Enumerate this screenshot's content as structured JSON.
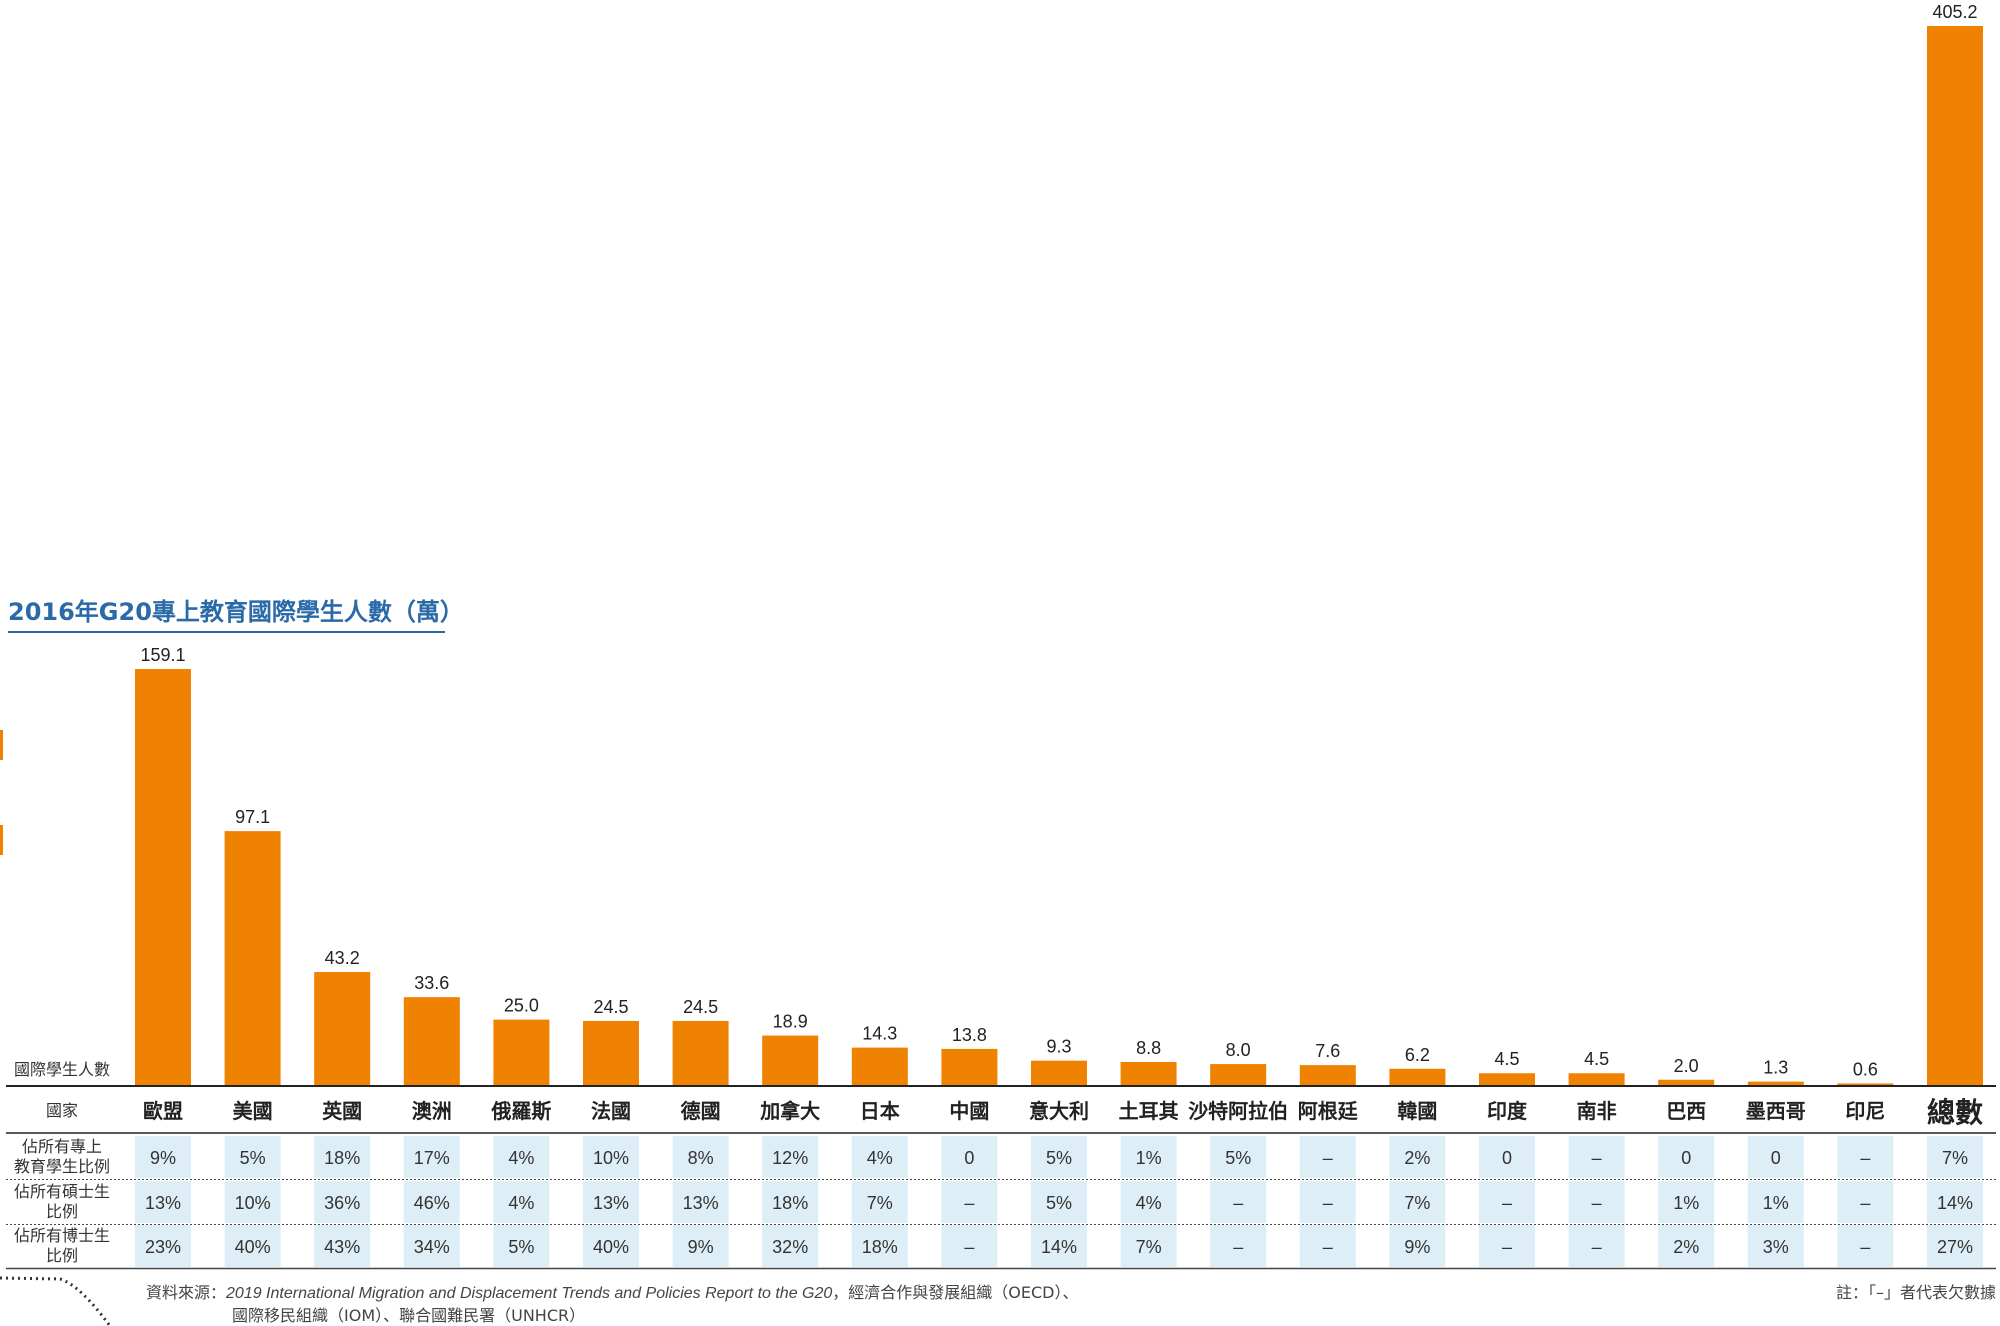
{
  "chart_data": {
    "type": "bar",
    "title": "2016年G20專上教育國際學生人數（萬）",
    "bar_row_label": "國際學生人數",
    "country_header": "國家",
    "categories": [
      "歐盟",
      "美國",
      "英國",
      "澳洲",
      "俄羅斯",
      "法國",
      "德國",
      "加拿大",
      "日本",
      "中國",
      "意大利",
      "土耳其",
      "沙特阿拉伯",
      "阿根廷",
      "韓國",
      "印度",
      "南非",
      "巴西",
      "墨西哥",
      "印尼",
      "總數"
    ],
    "values": [
      159.1,
      97.1,
      43.2,
      33.6,
      25.0,
      24.5,
      24.5,
      18.9,
      14.3,
      13.8,
      9.3,
      8.8,
      8.0,
      7.6,
      6.2,
      4.5,
      4.5,
      2.0,
      1.3,
      0.6,
      405.2
    ],
    "value_labels": [
      "159.1",
      "97.1",
      "43.2",
      "33.6",
      "25.0",
      "24.5",
      "24.5",
      "18.9",
      "14.3",
      "13.8",
      "9.3",
      "8.8",
      "8.0",
      "7.6",
      "6.2",
      "4.5",
      "4.5",
      "2.0",
      "1.3",
      "0.6",
      "405.2"
    ],
    "bar_color": "#ef8200",
    "title_color": "#2a6aa8",
    "table": {
      "rows": [
        {
          "label_lines": [
            "佔所有專上",
            "教育學生比例"
          ],
          "values": [
            "9%",
            "5%",
            "18%",
            "17%",
            "4%",
            "10%",
            "8%",
            "12%",
            "4%",
            "0",
            "5%",
            "1%",
            "5%",
            "–",
            "2%",
            "0",
            "–",
            "0",
            "0",
            "–",
            "7%"
          ]
        },
        {
          "label_lines": [
            "佔所有碩士生",
            "比例"
          ],
          "values": [
            "13%",
            "10%",
            "36%",
            "46%",
            "4%",
            "13%",
            "13%",
            "18%",
            "7%",
            "–",
            "5%",
            "4%",
            "–",
            "–",
            "7%",
            "–",
            "–",
            "1%",
            "1%",
            "–",
            "14%"
          ]
        },
        {
          "label_lines": [
            "佔所有博士生",
            "比例"
          ],
          "values": [
            "23%",
            "40%",
            "43%",
            "34%",
            "5%",
            "40%",
            "9%",
            "32%",
            "18%",
            "–",
            "14%",
            "7%",
            "–",
            "–",
            "9%",
            "–",
            "–",
            "2%",
            "3%",
            "–",
            "27%"
          ]
        }
      ],
      "cell_fill": "#deeef7"
    },
    "source_prefix": "資料來源：",
    "source_italic": "2019 International Migration and Displacement Trends and Policies Report to the G20",
    "source_rest_1": "，經濟合作與發展組織（OECD）、",
    "source_line_2": "國際移民組織（IOM）、聯合國難民署（UNHCR）",
    "note": "註：「–」者代表欠數據"
  }
}
